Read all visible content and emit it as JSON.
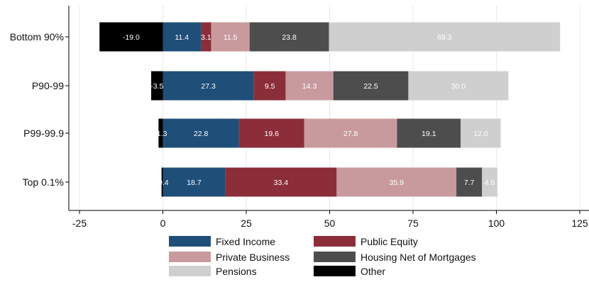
{
  "chart_data": {
    "type": "bar",
    "orientation": "horizontal",
    "stacked": true,
    "categories": [
      "Bottom 90%",
      "P90-99",
      "P99-99.9",
      "Top 0.1%"
    ],
    "series": [
      {
        "name": "Fixed Income",
        "color": "#1f4e79",
        "values": [
          11.4,
          27.3,
          22.8,
          18.7
        ],
        "labels": [
          "11.4",
          "27.3",
          "22.8",
          "18.7"
        ]
      },
      {
        "name": "Public Equity",
        "color": "#8b2e3a",
        "values": [
          3.1,
          9.5,
          19.6,
          33.4
        ],
        "labels": [
          "3.1",
          "9.5",
          "19.6",
          "33.4"
        ]
      },
      {
        "name": "Private Business",
        "color": "#c89a9e",
        "values": [
          11.5,
          14.3,
          27.8,
          35.9
        ],
        "labels": [
          "11.5",
          "14.3",
          "27.8",
          "35.9"
        ]
      },
      {
        "name": "Housing Net of Mortgages",
        "color": "#4d4d4d",
        "values": [
          23.8,
          22.5,
          19.1,
          7.7
        ],
        "labels": [
          "23.8",
          "22.5",
          "19.1",
          "7.7"
        ]
      },
      {
        "name": "Pensions",
        "color": "#cfcfcf",
        "values": [
          69.3,
          30.0,
          12.0,
          4.6
        ],
        "labels": [
          "69.3",
          "30.0",
          "12.0",
          "4.6"
        ]
      },
      {
        "name": "Other",
        "color": "#000000",
        "values": [
          -19.0,
          -3.5,
          -1.3,
          -0.4
        ],
        "labels": [
          "-19.0",
          "-3.5",
          "-1.3",
          "-0.4"
        ]
      }
    ],
    "xlim": [
      -25,
      125
    ],
    "xticks": [
      -25,
      0,
      25,
      50,
      75,
      100,
      125
    ],
    "xtick_labels": [
      "-25",
      "0",
      "25",
      "50",
      "75",
      "100",
      "125"
    ],
    "grid": true,
    "legend_position": "bottom",
    "title": "",
    "xlabel": "",
    "ylabel": ""
  }
}
